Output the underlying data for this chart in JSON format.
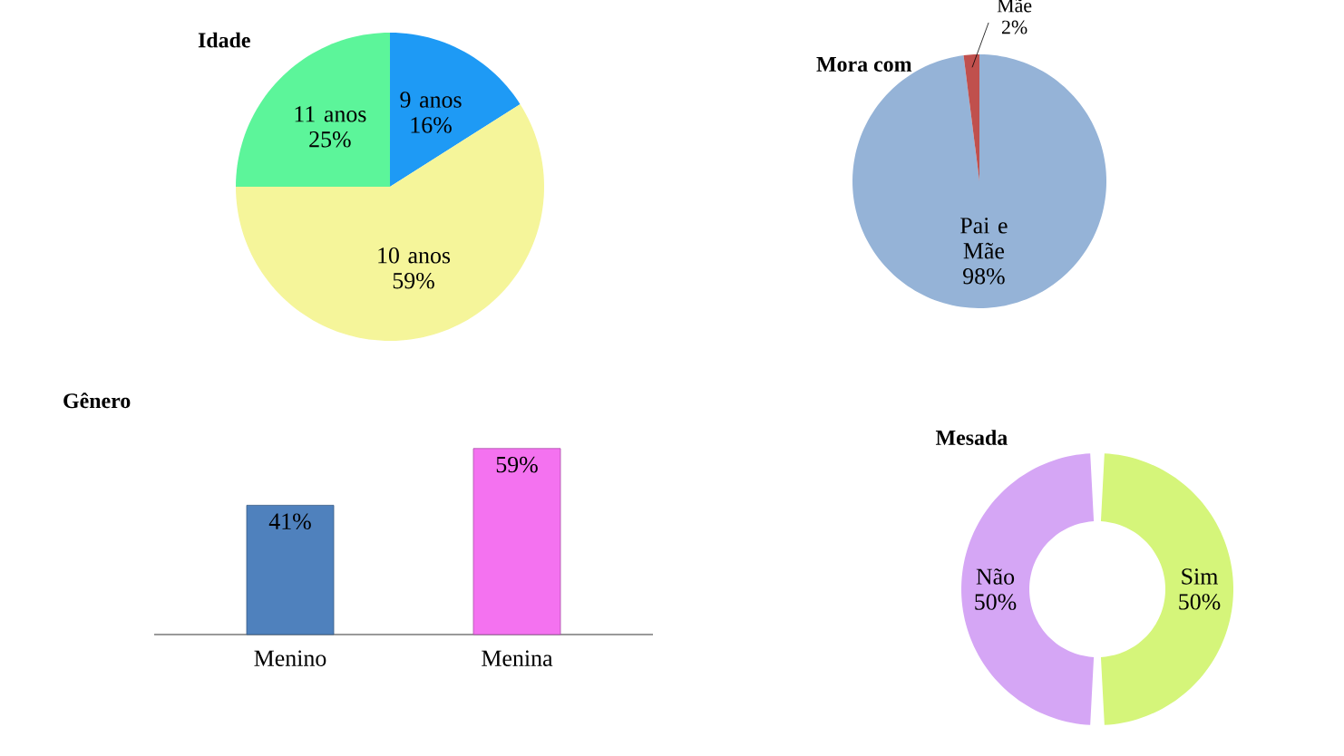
{
  "chart_data": [
    {
      "type": "pie",
      "title": "Idade",
      "categories": [
        "9 anos",
        "10 anos",
        "11 anos"
      ],
      "values": [
        16,
        59,
        25
      ],
      "colors": [
        "#1e9af5",
        "#f5f59a",
        "#5cf59a"
      ],
      "value_labels": [
        "16%",
        "59%",
        "25%"
      ]
    },
    {
      "type": "pie",
      "title": "Mora com",
      "categories": [
        "Pai e Mãe",
        "Mãe"
      ],
      "values": [
        98,
        2
      ],
      "colors": [
        "#95b3d7",
        "#c0504d"
      ],
      "value_labels": [
        "98%",
        "2%"
      ]
    },
    {
      "type": "bar",
      "title": "Gênero",
      "categories": [
        "Menino",
        "Menina"
      ],
      "values": [
        41,
        59
      ],
      "colors": [
        "#4f81bd",
        "#f472f0"
      ],
      "value_labels": [
        "41%",
        "59%"
      ]
    },
    {
      "type": "donut",
      "title": "Mesada",
      "categories": [
        "Não",
        "Sim"
      ],
      "values": [
        50,
        50
      ],
      "colors": [
        "#d5a6f5",
        "#d5f57a"
      ],
      "value_labels": [
        "50%",
        "50%"
      ]
    }
  ]
}
